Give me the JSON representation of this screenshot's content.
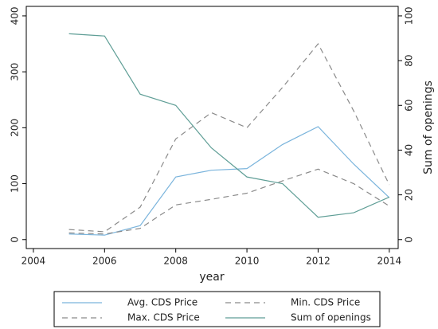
{
  "chart_data": {
    "type": "line",
    "x_label": "year",
    "y2_label": "Sum of openings",
    "x": [
      2005,
      2006,
      2007,
      2008,
      2009,
      2010,
      2011,
      2012,
      2013,
      2014
    ],
    "series": [
      {
        "name": "Avg. CDS Price",
        "color": "#7ab4dc",
        "dashed": false,
        "values": [
          10,
          8,
          25,
          112,
          124,
          127,
          170,
          202,
          135,
          75
        ]
      },
      {
        "name": "Min. CDS Price",
        "color": "#8a8a8a",
        "dashed": true,
        "values": [
          12,
          10,
          20,
          62,
          72,
          83,
          105,
          126,
          100,
          60
        ]
      },
      {
        "name": "Max. CDS Price",
        "color": "#8a8a8a",
        "dashed": true,
        "values": [
          18,
          14,
          58,
          180,
          227,
          200,
          272,
          350,
          230,
          98
        ]
      },
      {
        "name": "Sum of openings",
        "color": "#5f9e96",
        "dashed": false,
        "axis": "y2",
        "values": [
          92,
          91,
          65,
          60,
          41,
          28,
          25,
          10,
          12,
          19
        ]
      }
    ],
    "xlim": [
      2003.8,
      2014.25
    ],
    "xticks": [
      2004,
      2006,
      2008,
      2010,
      2012,
      2014
    ],
    "ylim": [
      -16,
      417
    ],
    "yticks": [
      0,
      100,
      200,
      300,
      400
    ],
    "y2lim": [
      -4,
      104.25
    ],
    "y2ticks": [
      0,
      20,
      40,
      60,
      80,
      100
    ]
  }
}
